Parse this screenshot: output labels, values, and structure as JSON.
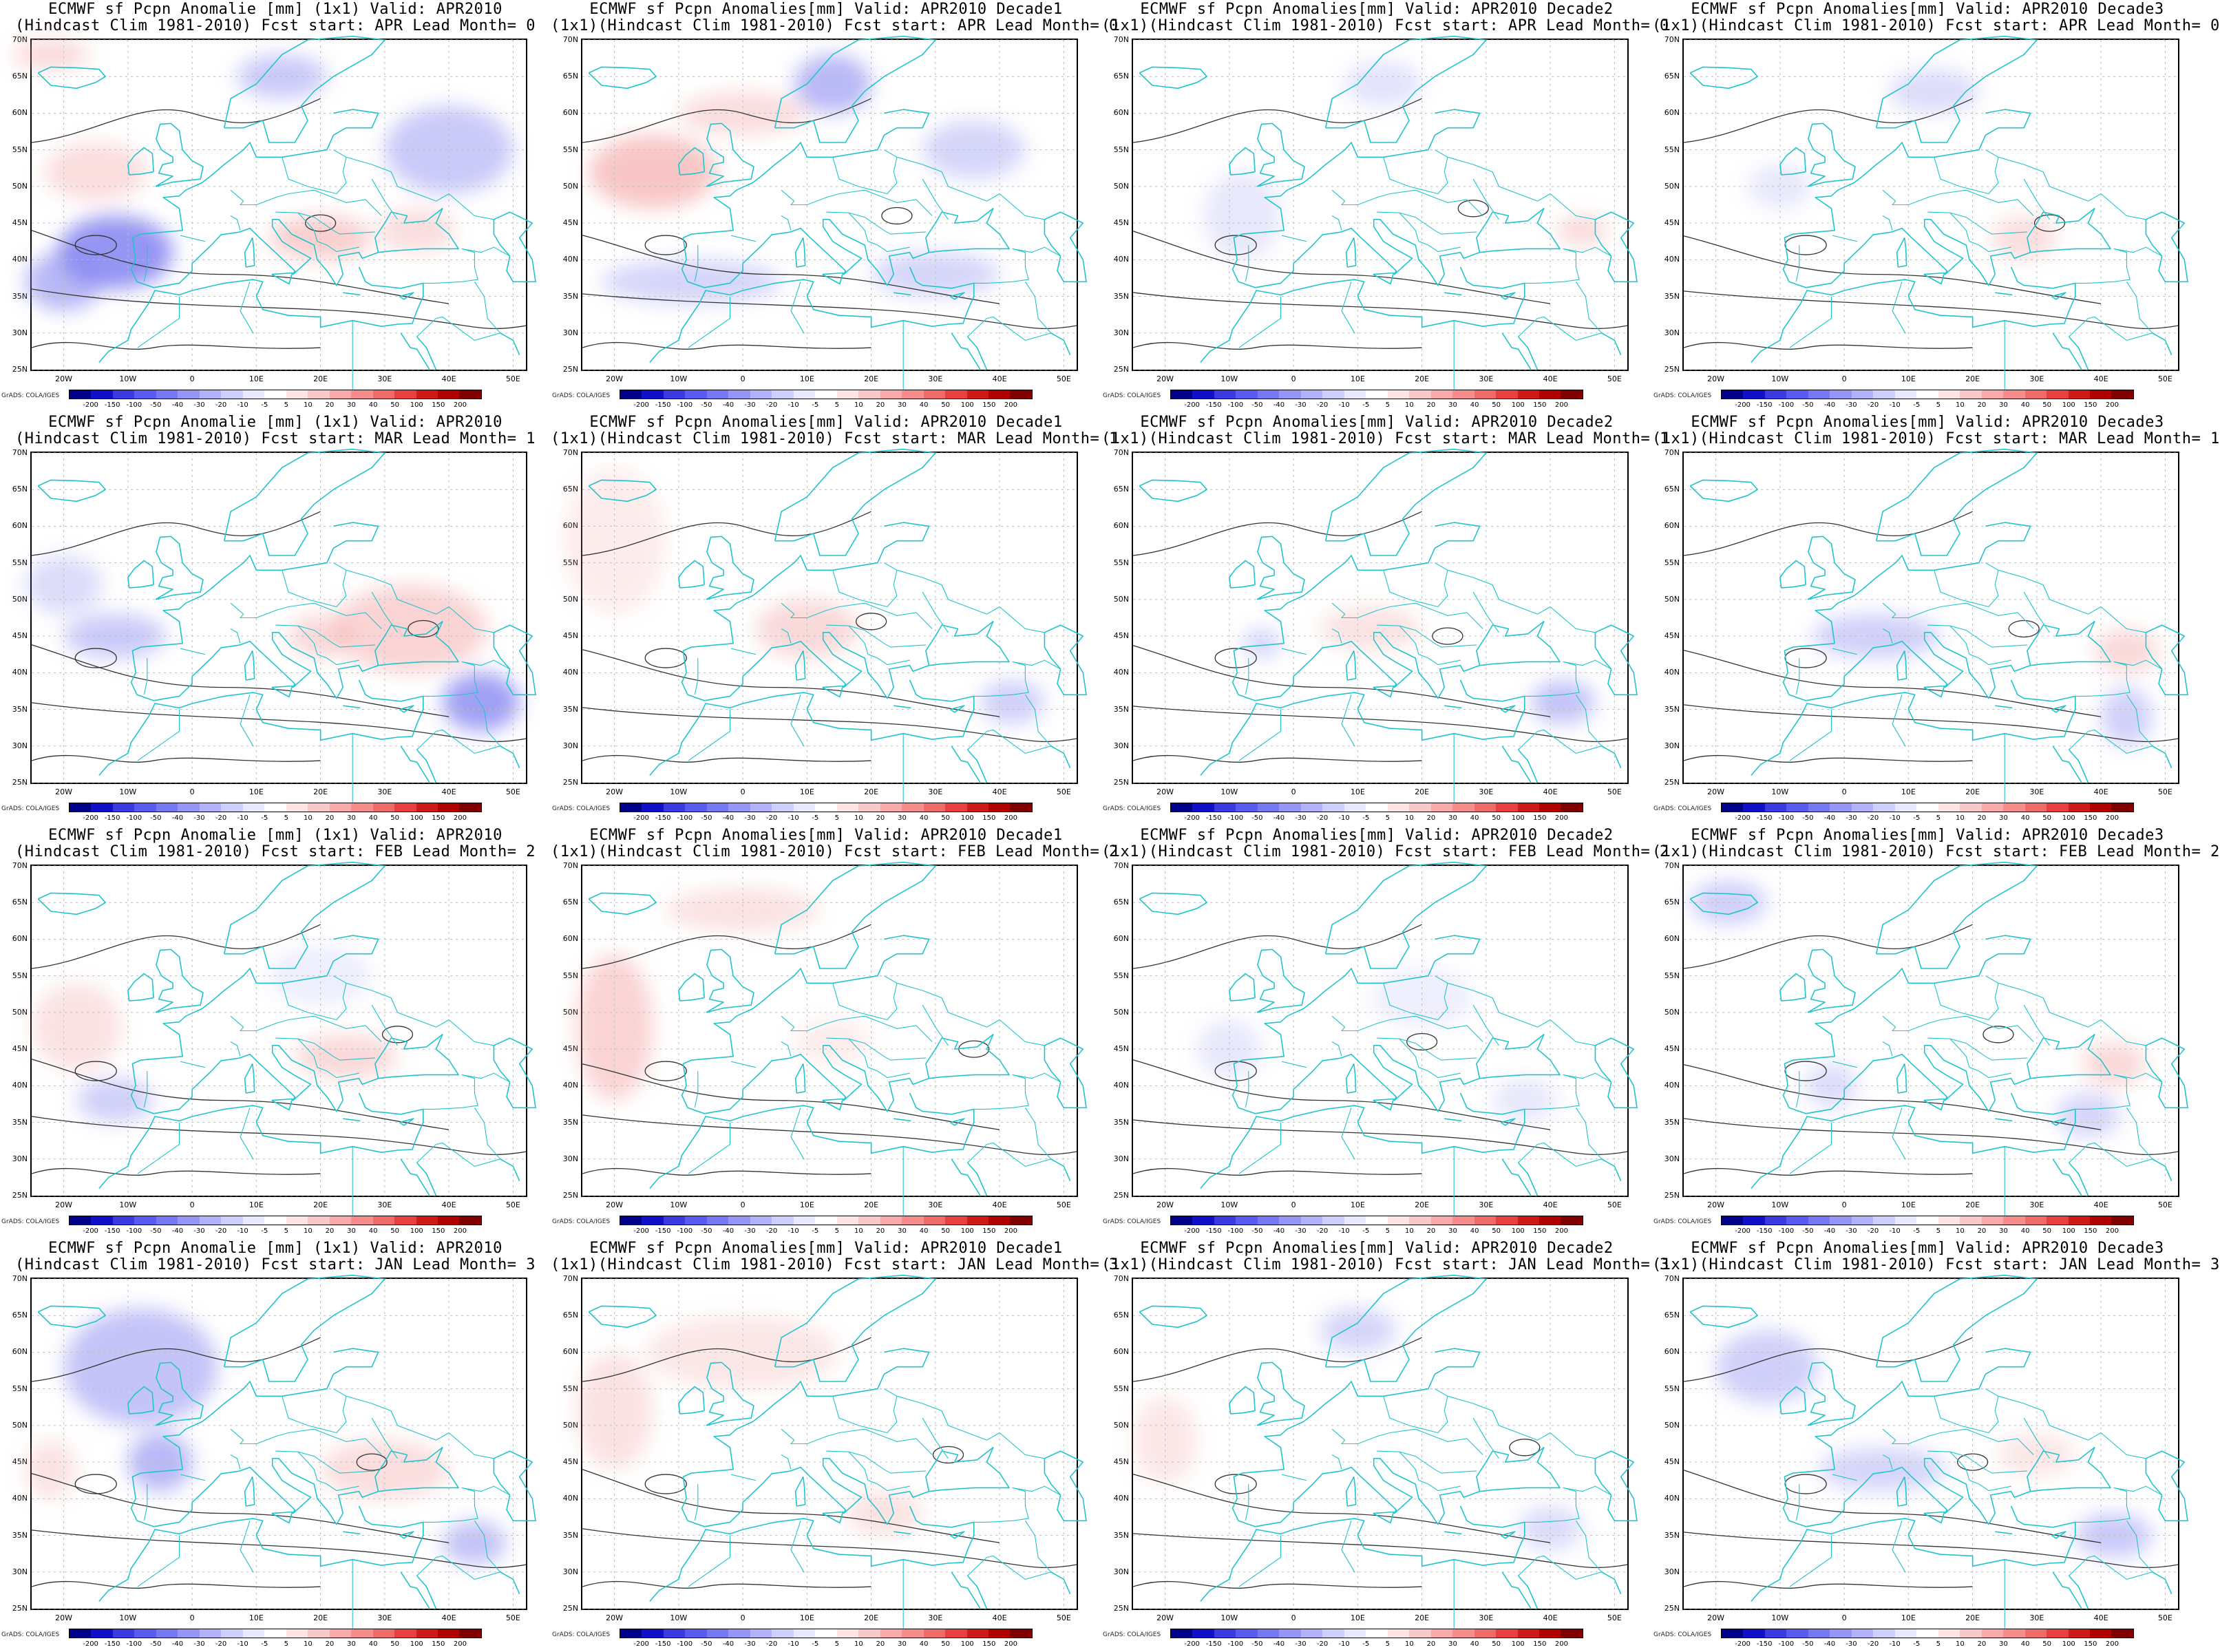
{
  "panels": [
    {
      "title1": "ECMWF sf Pcpn Anomalie [mm] (1x1) Valid: APR2010",
      "title2": "(Hindcast Clim 1981-2010) Fcst start: APR  Lead Month= 0"
    },
    {
      "title1": "ECMWF sf Pcpn Anomalies[mm] Valid: APR2010 Decade1",
      "title2": "(1x1)(Hindcast Clim 1981-2010) Fcst start: APR  Lead Month= 0"
    },
    {
      "title1": "ECMWF sf Pcpn Anomalies[mm] Valid: APR2010 Decade2",
      "title2": "(1x1)(Hindcast Clim 1981-2010) Fcst start: APR  Lead Month= 0"
    },
    {
      "title1": "ECMWF sf Pcpn Anomalies[mm] Valid: APR2010 Decade3",
      "title2": "(1x1)(Hindcast Clim 1981-2010) Fcst start: APR  Lead Month= 0"
    },
    {
      "title1": "ECMWF sf Pcpn Anomalie [mm] (1x1) Valid: APR2010",
      "title2": "(Hindcast Clim 1981-2010) Fcst start: MAR  Lead Month= 1"
    },
    {
      "title1": "ECMWF sf Pcpn Anomalies[mm] Valid: APR2010 Decade1",
      "title2": "(1x1)(Hindcast Clim 1981-2010) Fcst start: MAR  Lead Month= 1"
    },
    {
      "title1": "ECMWF sf Pcpn Anomalies[mm] Valid: APR2010 Decade2",
      "title2": "(1x1)(Hindcast Clim 1981-2010) Fcst start: MAR  Lead Month= 1"
    },
    {
      "title1": "ECMWF sf Pcpn Anomalies[mm] Valid: APR2010 Decade3",
      "title2": "(1x1)(Hindcast Clim 1981-2010) Fcst start: MAR  Lead Month= 1"
    },
    {
      "title1": "ECMWF sf Pcpn Anomalie [mm] (1x1) Valid: APR2010",
      "title2": "(Hindcast Clim 1981-2010) Fcst start: FEB  Lead Month= 2"
    },
    {
      "title1": "ECMWF sf Pcpn Anomalies[mm] Valid: APR2010 Decade1",
      "title2": "(1x1)(Hindcast Clim 1981-2010) Fcst start: FEB  Lead Month= 2"
    },
    {
      "title1": "ECMWF sf Pcpn Anomalies[mm] Valid: APR2010 Decade2",
      "title2": "(1x1)(Hindcast Clim 1981-2010) Fcst start: FEB  Lead Month= 2"
    },
    {
      "title1": "ECMWF sf Pcpn Anomalies[mm] Valid: APR2010 Decade3",
      "title2": "(1x1)(Hindcast Clim 1981-2010) Fcst start: FEB  Lead Month= 2"
    },
    {
      "title1": "ECMWF sf Pcpn Anomalie [mm] (1x1) Valid: APR2010",
      "title2": "(Hindcast Clim 1981-2010) Fcst start: JAN  Lead Month= 3"
    },
    {
      "title1": "ECMWF sf Pcpn Anomalies[mm] Valid: APR2010 Decade1",
      "title2": "(1x1)(Hindcast Clim 1981-2010) Fcst start: JAN  Lead Month= 3"
    },
    {
      "title1": "ECMWF sf Pcpn Anomalies[mm] Valid: APR2010 Decade2",
      "title2": "(1x1)(Hindcast Clim 1981-2010) Fcst start: JAN  Lead Month= 3"
    },
    {
      "title1": "ECMWF sf Pcpn Anomalies[mm] Valid: APR2010 Decade3",
      "title2": "(1x1)(Hindcast Clim 1981-2010) Fcst start: JAN  Lead Month= 3"
    }
  ],
  "lat_labels": [
    "70N",
    "65N",
    "60N",
    "55N",
    "50N",
    "45N",
    "40N",
    "35N",
    "30N",
    "25N"
  ],
  "lon_labels": [
    "20W",
    "10W",
    "0",
    "10E",
    "20E",
    "30E",
    "40E",
    "50E"
  ],
  "credit": "GrADS: COLA/IGES",
  "colorbar": {
    "labels": [
      "-200",
      "-150",
      "-100",
      "-50",
      "-40",
      "-30",
      "-20",
      "-10",
      "-5",
      "5",
      "10",
      "20",
      "30",
      "40",
      "50",
      "100",
      "150",
      "200"
    ],
    "colors": [
      "#00008b",
      "#1010c8",
      "#3a3ae0",
      "#5a5af0",
      "#7878f5",
      "#9595f8",
      "#b2b2fa",
      "#cfcffc",
      "#e8e8fe",
      "#ffffff",
      "#fde3e3",
      "#fbc8c8",
      "#f8aaaa",
      "#f58c8c",
      "#f06a6a",
      "#e84040",
      "#d01a1a",
      "#b00000",
      "#800000"
    ]
  },
  "anomaly_colors": {
    "wet": "#8a8af2",
    "dry": "#f3a0a0",
    "coast": "#22c4cc",
    "contour": "#333333"
  }
}
